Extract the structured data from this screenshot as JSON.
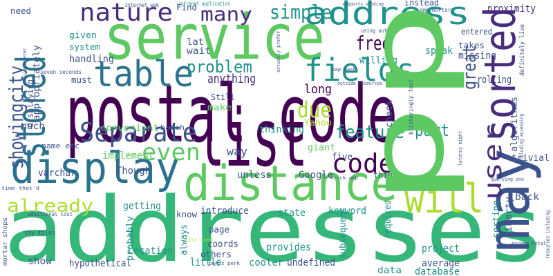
{
  "words": [
    "addresses",
    "postal code",
    "service",
    "list",
    "distance",
    "display",
    "address",
    "table",
    "fields",
    "Separate",
    "nature",
    "will",
    "code",
    "feature",
    "due",
    "even",
    "already",
    "many",
    "simple",
    "problem",
    "free",
    "part",
    "anything",
    "long",
    "complete",
    "Find",
    "need",
    "internet web",
    "intranet application",
    "supports sending",
    "instead",
    "amp mortar",
    "proximity",
    "given",
    "system",
    "handling",
    "must",
    "lat",
    "wait",
    "willing",
    "speak",
    "takes",
    "missing",
    "entered",
    "rolling",
    "using outside",
    "map mash",
    "outside resources",
    "Still",
    "make",
    "thinking",
    "Yahoo",
    "much",
    "convenient",
    "batch",
    "name etc",
    "implement",
    "varchar",
    "Though",
    "way",
    "giant",
    "five",
    "unless",
    "Google",
    "think",
    "brick amp",
    "trivial",
    "getting",
    "introduce",
    "keyword",
    "state",
    "back",
    "know",
    "additional cost",
    "say miles",
    "page",
    "coords",
    "others",
    "provides",
    "project",
    "Location",
    "show",
    "hypothetical",
    "little",
    "cooler",
    "undefined",
    "data",
    "average",
    "database",
    "bonus perk",
    "cost onto",
    "time that'd",
    "seven seconds",
    "exceed total",
    "querying one",
    "pp",
    "may",
    "sorted",
    "stored",
    "showingcity",
    "user",
    "great",
    "appropriately",
    "check",
    "sorting",
    "liberty",
    "algorithms",
    "definitely live",
    "including accessing",
    "blisteringly fast",
    "latency might",
    "required",
    "subsequent",
    "probably",
    "always",
    "displaying",
    "mortar shops",
    "resources including",
    "accessing internet",
    "actually prefer"
  ]
}
